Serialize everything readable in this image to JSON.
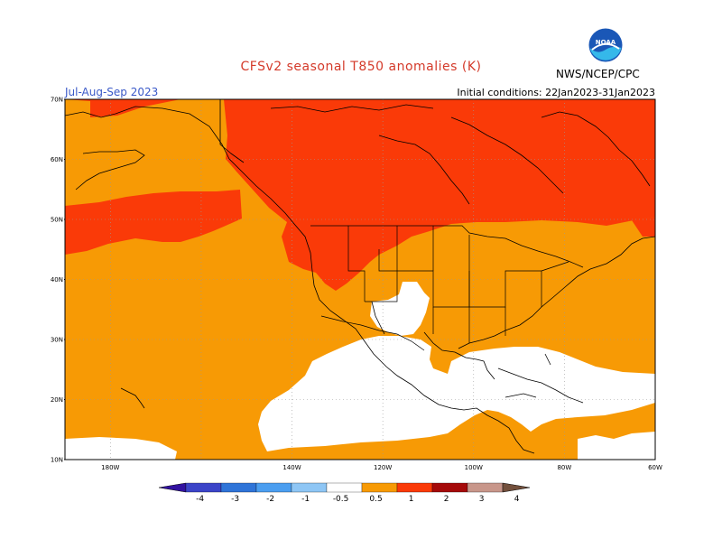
{
  "header": {
    "title": "CFSv2 seasonal T850 anomalies (K)",
    "season": "Jul-Aug-Sep 2023",
    "initial_conditions": "Initial conditions: 22Jan2023-31Jan2023",
    "agency": "NWS/NCEP/CPC",
    "logo_text": "NOAA",
    "logo_icon": "noaa-logo-icon"
  },
  "map": {
    "projection": "cylindrical-equidistant",
    "lon_range": [
      -190,
      -60
    ],
    "lat_range": [
      10,
      70
    ],
    "lat_labels": [
      "70N",
      "60N",
      "50N",
      "40N",
      "30N",
      "20N",
      "10N"
    ],
    "lon_labels": [
      "180W",
      "140W",
      "120W",
      "100W",
      "80W",
      "60W"
    ],
    "lon_label_values": [
      -180,
      -140,
      -120,
      -100,
      -80,
      -60
    ],
    "grid": "dotted",
    "colors": {
      "gt_0_5": "#f79a05",
      "gt_1": "#fa3a08",
      "near_zero": "#ffffff",
      "outline": "#000000"
    }
  },
  "colorbar": {
    "labels": [
      "-4",
      "-3",
      "-2",
      "-1",
      "-0.5",
      "0.5",
      "1",
      "2",
      "3",
      "4"
    ],
    "colors": [
      "#3212a0",
      "#3b44c8",
      "#2f74d8",
      "#4b9ef0",
      "#8ec6f5",
      "#ffffff",
      "#f79a05",
      "#fa3a08",
      "#a50a0a",
      "#c8968a",
      "#73503c"
    ]
  }
}
